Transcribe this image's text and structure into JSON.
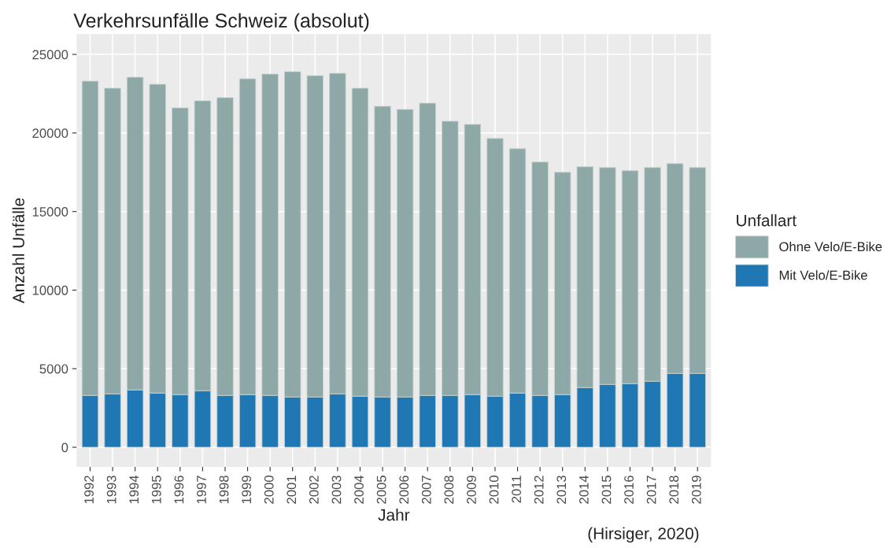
{
  "chart_data": {
    "type": "bar",
    "title": "Verkehrsunfälle Schweiz (absolut)",
    "xlabel": "Jahr",
    "ylabel": "Anzahl Unfälle",
    "legend_title": "Unfallart",
    "categories": [
      "1992",
      "1993",
      "1994",
      "1995",
      "1996",
      "1997",
      "1998",
      "1999",
      "2000",
      "2001",
      "2002",
      "2003",
      "2004",
      "2005",
      "2006",
      "2007",
      "2008",
      "2009",
      "2010",
      "2011",
      "2012",
      "2013",
      "2014",
      "2015",
      "2016",
      "2017",
      "2018",
      "2019"
    ],
    "stacked": true,
    "series": [
      {
        "name": "Mit Velo/E-Bike",
        "color": "#1f77b4",
        "values": [
          3300,
          3400,
          3650,
          3450,
          3350,
          3600,
          3300,
          3350,
          3300,
          3200,
          3200,
          3400,
          3250,
          3200,
          3200,
          3300,
          3300,
          3350,
          3250,
          3450,
          3300,
          3350,
          3800,
          4000,
          4050,
          4200,
          4700,
          4700
        ]
      },
      {
        "name": "Ohne Velo/E-Bike",
        "color": "#8ea8a7",
        "values": [
          20000,
          19450,
          19900,
          19650,
          18250,
          18450,
          18950,
          20100,
          20450,
          20700,
          20450,
          20400,
          19600,
          18500,
          18300,
          18600,
          17450,
          17200,
          16400,
          15550,
          14850,
          14150,
          14050,
          13800,
          13550,
          13600,
          13350,
          13100
        ]
      }
    ],
    "ylim": [
      -1250,
      26300
    ],
    "yticks": [
      0,
      5000,
      10000,
      15000,
      20000,
      25000
    ],
    "grid": true,
    "legend": "right",
    "annotations": [
      "(Hirsiger, 2020)"
    ]
  }
}
